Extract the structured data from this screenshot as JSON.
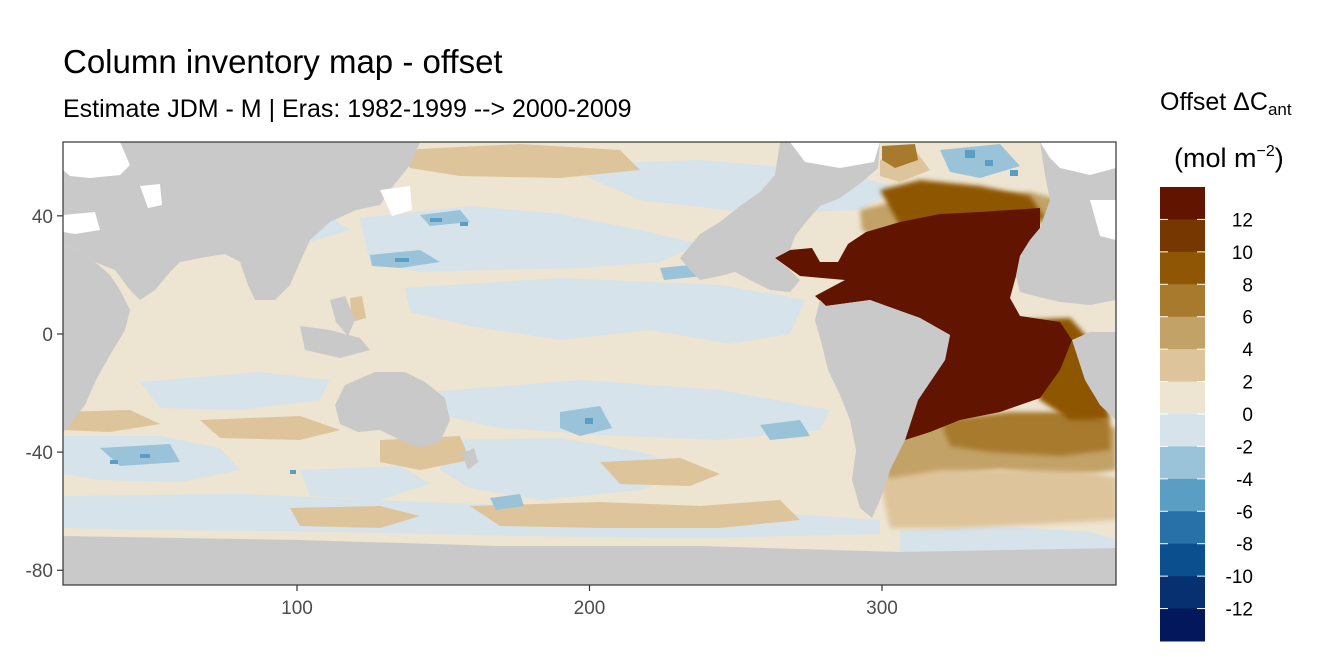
{
  "title": "Column inventory map - offset",
  "subtitle": "Estimate JDM - M | Eras: 1982-1999 --> 2000-2009",
  "legend": {
    "title_prefix": "Offset ΔC",
    "title_subscript": "ant",
    "unit_prefix": "(mol m",
    "unit_superscript": "−2",
    "unit_suffix": ")",
    "labels": [
      "12",
      "10",
      "8",
      "6",
      "4",
      "2",
      "0",
      "-2",
      "-4",
      "-6",
      "-8",
      "-10",
      "-12"
    ],
    "colors": [
      "#611400",
      "#773700",
      "#8f5605",
      "#a77a2e",
      "#c2a266",
      "#dec49a",
      "#ede4d2",
      "#d6e3ea",
      "#9ac2d8",
      "#5b9ec4",
      "#2770a8",
      "#0b4f8e",
      "#063070",
      "#03185c"
    ]
  },
  "colors": {
    "land": "#c9c9c9",
    "ocean_background": "#ede4d2",
    "gridless_panel": "#c9c9c9"
  },
  "chart_data": {
    "type": "heatmap",
    "xlim": [
      20,
      380
    ],
    "ylim": [
      -85,
      65
    ],
    "x_ticks": [
      100,
      200,
      300
    ],
    "y_ticks": [
      40,
      0,
      -40,
      -80
    ],
    "x_tick_labels": [
      "100",
      "200",
      "300"
    ],
    "y_tick_labels": [
      "40",
      "0",
      "-40",
      "-80"
    ],
    "legend_placement": "right",
    "grid": false,
    "color_scale_breaks": [
      12,
      10,
      8,
      6,
      4,
      2,
      0,
      -2,
      -4,
      -6,
      -8,
      -10,
      -12
    ],
    "regions": [
      {
        "area": "North Atlantic subtropical",
        "value_range": [
          12,
          14
        ]
      },
      {
        "area": "South Atlantic west / Brazil basin",
        "value_range": [
          12,
          14
        ]
      },
      {
        "area": "South Atlantic east",
        "value_range": [
          8,
          12
        ]
      },
      {
        "area": "Labrador / Irminger Sea",
        "value_range": [
          -6,
          10
        ]
      },
      {
        "area": "Southern Ocean Atlantic sector",
        "value_range": [
          2,
          8
        ]
      },
      {
        "area": "Pacific and Indian Ocean interior",
        "value_range": [
          -2,
          2
        ]
      },
      {
        "area": "North Pacific Kuroshio",
        "value_range": [
          -6,
          0
        ]
      },
      {
        "area": "Southern Indian Ocean",
        "value_range": [
          -8,
          4
        ]
      },
      {
        "area": "Southern Ocean Pacific sector",
        "value_range": [
          -4,
          6
        ]
      }
    ]
  }
}
